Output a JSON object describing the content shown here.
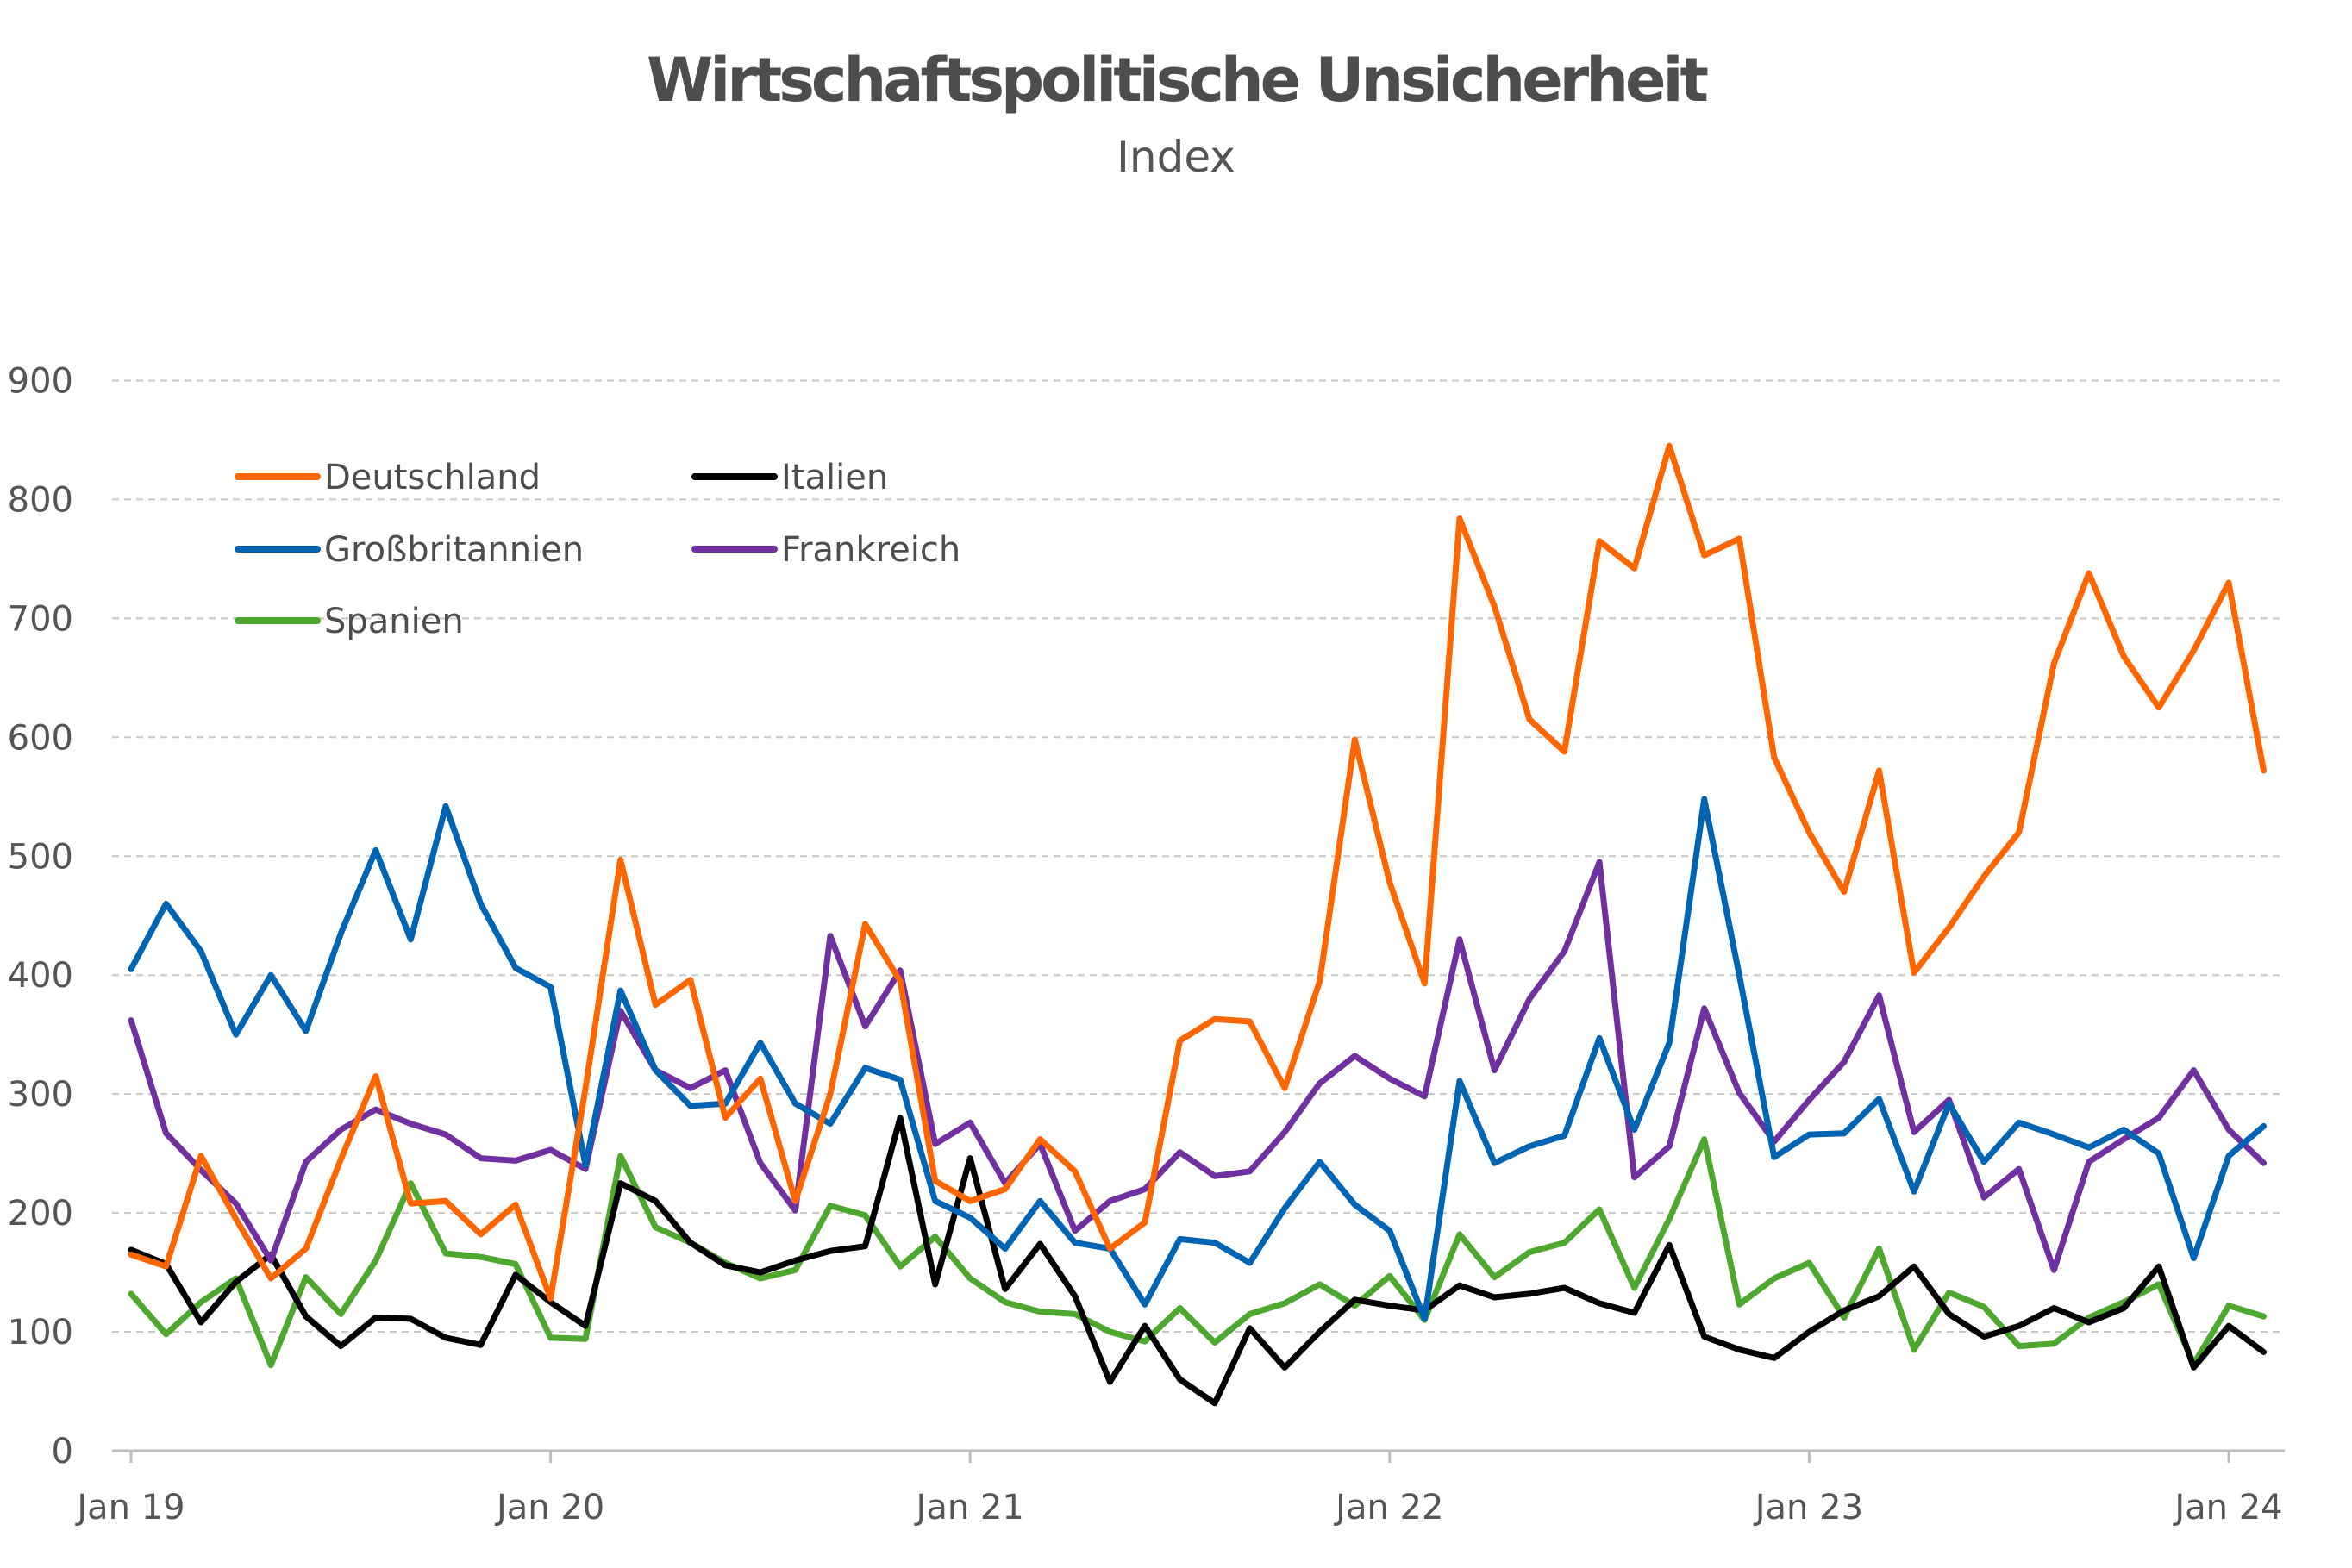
{
  "chart_data": {
    "type": "line",
    "title": "Wirtschaftspolitische Unsicherheit",
    "subtitle": "Index",
    "xlabel": "",
    "ylabel": "",
    "ylim": [
      0,
      900
    ],
    "y_ticks": [
      0,
      100,
      200,
      300,
      400,
      500,
      600,
      700,
      800,
      900
    ],
    "x_tick_labels": [
      "Jan 19",
      "Jan 20",
      "Jan 21",
      "Jan 22",
      "Jan 23",
      "Jan 24"
    ],
    "x_tick_index": [
      0,
      12,
      24,
      36,
      48,
      60
    ],
    "grid": "horizontal dashed",
    "legend_position": "top-left",
    "series": [
      {
        "name": "Deutschland",
        "color": "#FF6600",
        "values": [
          165,
          155,
          248,
          195,
          145,
          170,
          245,
          315,
          208,
          210,
          182,
          207,
          128,
          305,
          497,
          375,
          396,
          280,
          313,
          210,
          300,
          443,
          395,
          227,
          210,
          220,
          262,
          235,
          170,
          192,
          345,
          363,
          361,
          305,
          395,
          598,
          478,
          393,
          784,
          710,
          615,
          588,
          765,
          742,
          845,
          753,
          767,
          583,
          520,
          470,
          572,
          402,
          440,
          483,
          520,
          662,
          738,
          668,
          625,
          673,
          730,
          572
        ]
      },
      {
        "name": "Italien",
        "color": "#000000",
        "values": [
          169,
          157,
          108,
          142,
          165,
          113,
          88,
          112,
          111,
          95,
          89,
          148,
          125,
          105,
          225,
          210,
          175,
          156,
          150,
          160,
          168,
          172,
          280,
          140,
          246,
          136,
          174,
          130,
          58,
          105,
          60,
          40,
          103,
          70,
          100,
          127,
          122,
          118,
          139,
          129,
          132,
          137,
          124,
          116,
          173,
          96,
          85,
          78,
          100,
          118,
          130,
          155,
          115,
          96,
          105,
          120,
          108,
          120,
          155,
          70,
          105,
          83
        ]
      },
      {
        "name": "Großbritannien",
        "color": "#0064B4",
        "values": [
          405,
          460,
          420,
          350,
          400,
          353,
          435,
          505,
          430,
          542,
          460,
          406,
          390,
          240,
          387,
          320,
          290,
          292,
          343,
          292,
          275,
          322,
          312,
          210,
          196,
          170,
          210,
          175,
          170,
          123,
          178,
          175,
          158,
          204,
          243,
          207,
          185,
          111,
          311,
          242,
          256,
          265,
          347,
          270,
          343,
          548,
          400,
          247,
          266,
          267,
          296,
          218,
          292,
          243,
          276,
          266,
          255,
          270,
          250,
          162,
          248,
          273
        ]
      },
      {
        "name": "Frankreich",
        "color": "#7030A0",
        "values": [
          362,
          267,
          236,
          208,
          160,
          243,
          270,
          287,
          275,
          266,
          246,
          244,
          253,
          237,
          370,
          320,
          305,
          320,
          242,
          202,
          433,
          357,
          404,
          258,
          276,
          225,
          258,
          185,
          210,
          220,
          251,
          231,
          235,
          268,
          309,
          332,
          313,
          298,
          430,
          320,
          380,
          420,
          495,
          230,
          256,
          372,
          301,
          260,
          295,
          327,
          383,
          268,
          295,
          213,
          237,
          152,
          243,
          262,
          280,
          320,
          270,
          242
        ]
      },
      {
        "name": "Spanien",
        "color": "#4EA72E",
        "values": [
          132,
          98,
          125,
          145,
          72,
          146,
          115,
          160,
          225,
          166,
          163,
          157,
          95,
          94,
          248,
          188,
          175,
          158,
          145,
          152,
          206,
          198,
          155,
          180,
          145,
          125,
          117,
          115,
          100,
          92,
          120,
          91,
          115,
          124,
          140,
          122,
          147,
          110,
          182,
          146,
          167,
          175,
          203,
          137,
          195,
          262,
          123,
          145,
          158,
          112,
          170,
          85,
          133,
          121,
          88,
          90,
          112,
          125,
          140,
          73,
          122,
          113
        ]
      }
    ]
  }
}
